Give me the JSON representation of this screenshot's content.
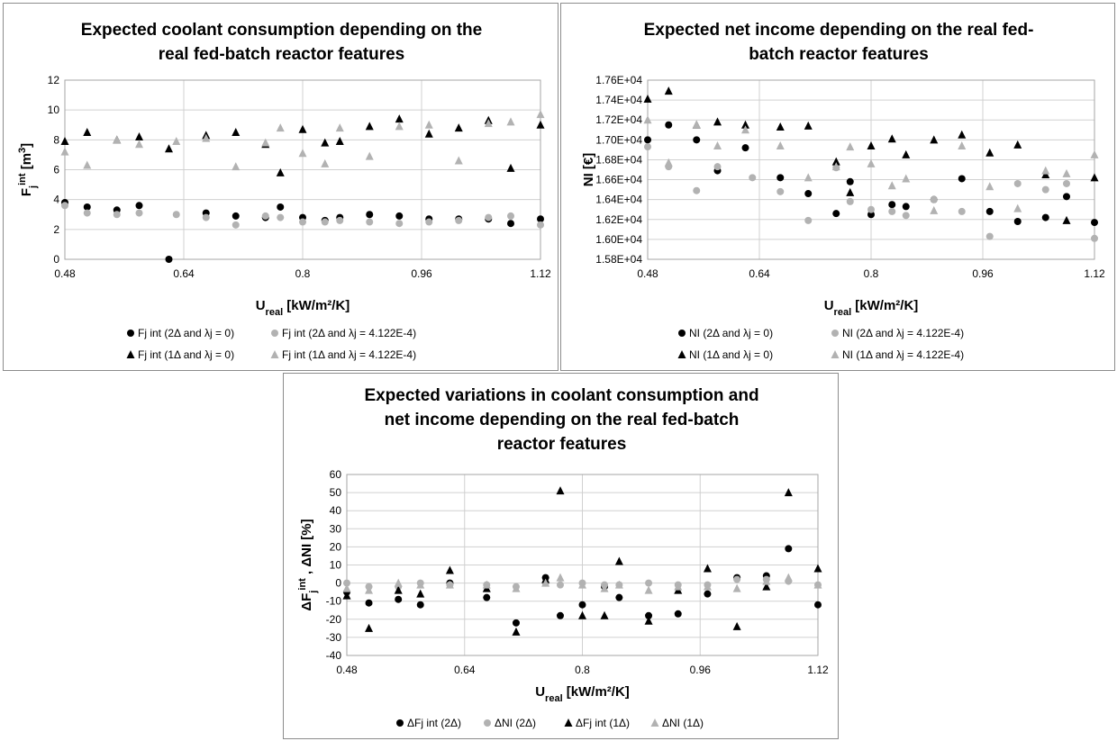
{
  "colors": {
    "black": "#000000",
    "gray": "#b2b2b2",
    "grid": "#d0d0d0"
  },
  "chart_data": [
    {
      "type": "scatter",
      "title": "Expected coolant consumption depending on the real fed-batch reactor features",
      "title_lines": [
        "Expected coolant consumption depending on the",
        "real fed-batch reactor features"
      ],
      "xlabel": "U_real [kW/m²/K]",
      "ylabel": "F_j^int [m³]",
      "xlim": [
        0.48,
        1.12
      ],
      "xticks": [
        0.48,
        0.64,
        0.8,
        0.96,
        1.12
      ],
      "xtick_labels": [
        "0.48",
        "0.64",
        "0.8",
        "0.96",
        "1.12"
      ],
      "ylim": [
        0,
        12
      ],
      "yticks": [
        0,
        2,
        4,
        6,
        8,
        10,
        12
      ],
      "ytick_labels": [
        "0",
        "2",
        "4",
        "6",
        "8",
        "10",
        "12"
      ],
      "grid": "vertical and horizontal",
      "legend_position": "bottom",
      "series": [
        {
          "name": "Fj int (2Δ and λj = 0)",
          "marker": "circle",
          "color": "#000000",
          "x": [
            0.48,
            0.51,
            0.55,
            0.58,
            0.62,
            0.67,
            0.71,
            0.75,
            0.77,
            0.8,
            0.83,
            0.85,
            0.89,
            0.93,
            0.97,
            1.01,
            1.05,
            1.08,
            1.12
          ],
          "y": [
            3.8,
            3.5,
            3.3,
            3.6,
            0.0,
            3.1,
            2.9,
            2.8,
            3.5,
            2.8,
            2.6,
            2.8,
            3.0,
            2.9,
            2.7,
            2.7,
            2.7,
            2.4,
            2.7
          ]
        },
        {
          "name": "Fj int (2Δ and λj = 4.122E-4)",
          "marker": "circle",
          "color": "#b2b2b2",
          "x": [
            0.48,
            0.51,
            0.55,
            0.58,
            0.63,
            0.67,
            0.71,
            0.75,
            0.77,
            0.8,
            0.83,
            0.85,
            0.89,
            0.93,
            0.97,
            1.01,
            1.05,
            1.08,
            1.12
          ],
          "y": [
            3.6,
            3.1,
            3.0,
            3.1,
            3.0,
            2.8,
            2.3,
            2.9,
            2.8,
            2.5,
            2.5,
            2.6,
            2.5,
            2.4,
            2.5,
            2.6,
            2.8,
            2.9,
            2.3
          ]
        },
        {
          "name": "Fj int (1Δ and λj = 0)",
          "marker": "triangle",
          "color": "#000000",
          "x": [
            0.48,
            0.51,
            0.55,
            0.58,
            0.62,
            0.67,
            0.71,
            0.75,
            0.77,
            0.8,
            0.83,
            0.85,
            0.89,
            0.93,
            0.97,
            1.01,
            1.05,
            1.08,
            1.12
          ],
          "y": [
            7.9,
            8.5,
            8.0,
            8.2,
            7.4,
            8.3,
            8.5,
            7.7,
            5.8,
            8.7,
            7.8,
            7.9,
            8.9,
            9.4,
            8.4,
            8.8,
            9.3,
            6.1,
            9.0
          ]
        },
        {
          "name": "Fj int (1Δ and λj = 4.122E-4)",
          "marker": "triangle",
          "color": "#b2b2b2",
          "x": [
            0.48,
            0.51,
            0.55,
            0.58,
            0.63,
            0.67,
            0.71,
            0.75,
            0.77,
            0.8,
            0.83,
            0.85,
            0.89,
            0.93,
            0.97,
            1.01,
            1.05,
            1.08,
            1.12
          ],
          "y": [
            7.2,
            6.3,
            8.0,
            7.7,
            7.9,
            8.1,
            6.2,
            7.8,
            8.8,
            7.1,
            6.4,
            8.8,
            6.9,
            8.9,
            9.0,
            6.6,
            9.1,
            9.2,
            9.7
          ]
        }
      ]
    },
    {
      "type": "scatter",
      "title": "Expected net income depending on the real fed-batch reactor features",
      "title_lines": [
        "Expected net income depending on the real fed-",
        "batch reactor features"
      ],
      "xlabel": "U_real [kW/m²/K]",
      "ylabel": "NI [€]",
      "xlim": [
        0.48,
        1.12
      ],
      "xticks": [
        0.48,
        0.64,
        0.8,
        0.96,
        1.12
      ],
      "xtick_labels": [
        "0.48",
        "0.64",
        "0.8",
        "0.96",
        "1.12"
      ],
      "ylim": [
        15800,
        17600
      ],
      "yticks": [
        15800,
        16000,
        16200,
        16400,
        16600,
        16800,
        17000,
        17200,
        17400,
        17600
      ],
      "ytick_labels": [
        "1.58E+04",
        "1.60E+04",
        "1.62E+04",
        "1.64E+04",
        "1.66E+04",
        "1.68E+04",
        "1.70E+04",
        "1.72E+04",
        "1.74E+04",
        "1.76E+04"
      ],
      "grid": "vertical and horizontal",
      "legend_position": "bottom",
      "series": [
        {
          "name": "NI (2Δ and λj = 0)",
          "marker": "circle",
          "color": "#000000",
          "x": [
            0.48,
            0.51,
            0.55,
            0.58,
            0.62,
            0.67,
            0.71,
            0.75,
            0.77,
            0.8,
            0.83,
            0.85,
            0.89,
            0.93,
            0.97,
            1.01,
            1.05,
            1.08,
            1.12
          ],
          "y": [
            17000,
            17150,
            17000,
            16690,
            16920,
            16620,
            16460,
            16260,
            16580,
            16250,
            16350,
            16330,
            16400,
            16610,
            16280,
            16180,
            16220,
            16430,
            16170
          ]
        },
        {
          "name": "NI (2Δ and λj = 4.122E-4)",
          "marker": "circle",
          "color": "#b2b2b2",
          "x": [
            0.48,
            0.51,
            0.55,
            0.58,
            0.63,
            0.67,
            0.71,
            0.75,
            0.77,
            0.8,
            0.83,
            0.85,
            0.89,
            0.93,
            0.97,
            1.01,
            1.05,
            1.08,
            1.12
          ],
          "y": [
            16930,
            16730,
            16490,
            16730,
            16620,
            16480,
            16190,
            16720,
            16380,
            16300,
            16280,
            16240,
            16400,
            16280,
            16030,
            16560,
            16500,
            16560,
            16010
          ]
        },
        {
          "name": "NI (1Δ and λj = 0)",
          "marker": "triangle",
          "color": "#000000",
          "x": [
            0.48,
            0.51,
            0.55,
            0.58,
            0.62,
            0.67,
            0.71,
            0.75,
            0.77,
            0.8,
            0.83,
            0.85,
            0.89,
            0.93,
            0.97,
            1.01,
            1.05,
            1.08,
            1.12
          ],
          "y": [
            17410,
            17490,
            17150,
            17180,
            17150,
            17130,
            17140,
            16780,
            16470,
            16940,
            17010,
            16850,
            17000,
            17050,
            16870,
            16950,
            16650,
            16190,
            16620
          ]
        },
        {
          "name": "NI (1Δ and λj = 4.122E-4)",
          "marker": "triangle",
          "color": "#b2b2b2",
          "x": [
            0.48,
            0.51,
            0.55,
            0.58,
            0.62,
            0.67,
            0.71,
            0.75,
            0.77,
            0.8,
            0.83,
            0.85,
            0.89,
            0.93,
            0.97,
            1.01,
            1.05,
            1.08,
            1.12
          ],
          "y": [
            17200,
            16770,
            17150,
            16940,
            17100,
            16940,
            16620,
            16730,
            16930,
            16760,
            16540,
            16610,
            16290,
            16940,
            16530,
            16310,
            16690,
            16660,
            16850
          ]
        }
      ]
    },
    {
      "type": "scatter",
      "title": "Expected variations in coolant consumption and net income depending on the real fed-batch reactor features",
      "title_lines": [
        "Expected variations in coolant consumption and",
        "net income depending on the real fed-batch",
        "reactor features"
      ],
      "xlabel": "U_real [kW/m²/K]",
      "ylabel": "ΔF_j^int , ΔNI [%]",
      "xlim": [
        0.48,
        1.12
      ],
      "xticks": [
        0.48,
        0.64,
        0.8,
        0.96,
        1.12
      ],
      "xtick_labels": [
        "0.48",
        "0.64",
        "0.8",
        "0.96",
        "1.12"
      ],
      "ylim": [
        -40,
        60
      ],
      "yticks": [
        -40,
        -30,
        -20,
        -10,
        0,
        10,
        20,
        30,
        40,
        50,
        60
      ],
      "ytick_labels": [
        "-40",
        "-30",
        "-20",
        "-10",
        "0",
        "10",
        "20",
        "30",
        "40",
        "50",
        "60"
      ],
      "grid": "vertical and horizontal",
      "legend_position": "bottom",
      "series": [
        {
          "name": "ΔFj int (2Δ)",
          "marker": "circle",
          "color": "#000000",
          "x": [
            0.48,
            0.51,
            0.55,
            0.58,
            0.62,
            0.67,
            0.71,
            0.75,
            0.77,
            0.8,
            0.83,
            0.85,
            0.89,
            0.93,
            0.97,
            1.01,
            1.05,
            1.08,
            1.12
          ],
          "y": [
            -5,
            -11,
            -9,
            -12,
            0,
            -8,
            -22,
            3,
            -18,
            -12,
            -2,
            -8,
            -18,
            -17,
            -6,
            3,
            4,
            19,
            -12
          ]
        },
        {
          "name": "ΔNI (2Δ)",
          "marker": "circle",
          "color": "#b2b2b2",
          "x": [
            0.48,
            0.51,
            0.55,
            0.58,
            0.62,
            0.67,
            0.71,
            0.75,
            0.77,
            0.8,
            0.83,
            0.85,
            0.89,
            0.93,
            0.97,
            1.01,
            1.05,
            1.08,
            1.12
          ],
          "y": [
            0,
            -2,
            -2,
            0,
            -1,
            -1,
            -2,
            0,
            -1,
            0,
            -1,
            -1,
            0,
            -1,
            -1,
            2,
            2,
            1,
            -1
          ]
        },
        {
          "name": "ΔFj int (1Δ)",
          "marker": "triangle",
          "color": "#000000",
          "x": [
            0.48,
            0.51,
            0.55,
            0.58,
            0.62,
            0.67,
            0.71,
            0.75,
            0.77,
            0.8,
            0.83,
            0.85,
            0.89,
            0.93,
            0.97,
            1.01,
            1.05,
            1.08,
            1.12
          ],
          "y": [
            -7,
            -25,
            -4,
            -6,
            7,
            -3,
            -27,
            2,
            51,
            -18,
            -18,
            12,
            -21,
            -4,
            8,
            -24,
            -2,
            50,
            8
          ]
        },
        {
          "name": "ΔNI (1Δ)",
          "marker": "triangle",
          "color": "#b2b2b2",
          "x": [
            0.48,
            0.51,
            0.55,
            0.58,
            0.62,
            0.67,
            0.71,
            0.75,
            0.77,
            0.8,
            0.83,
            0.85,
            0.89,
            0.93,
            0.97,
            1.01,
            1.05,
            1.08,
            1.12
          ],
          "y": [
            -3,
            -4,
            0,
            -1,
            -1,
            -1,
            -3,
            0,
            3,
            -1,
            -3,
            -1,
            -4,
            -2,
            -2,
            -3,
            1,
            3,
            -1
          ]
        }
      ]
    }
  ]
}
